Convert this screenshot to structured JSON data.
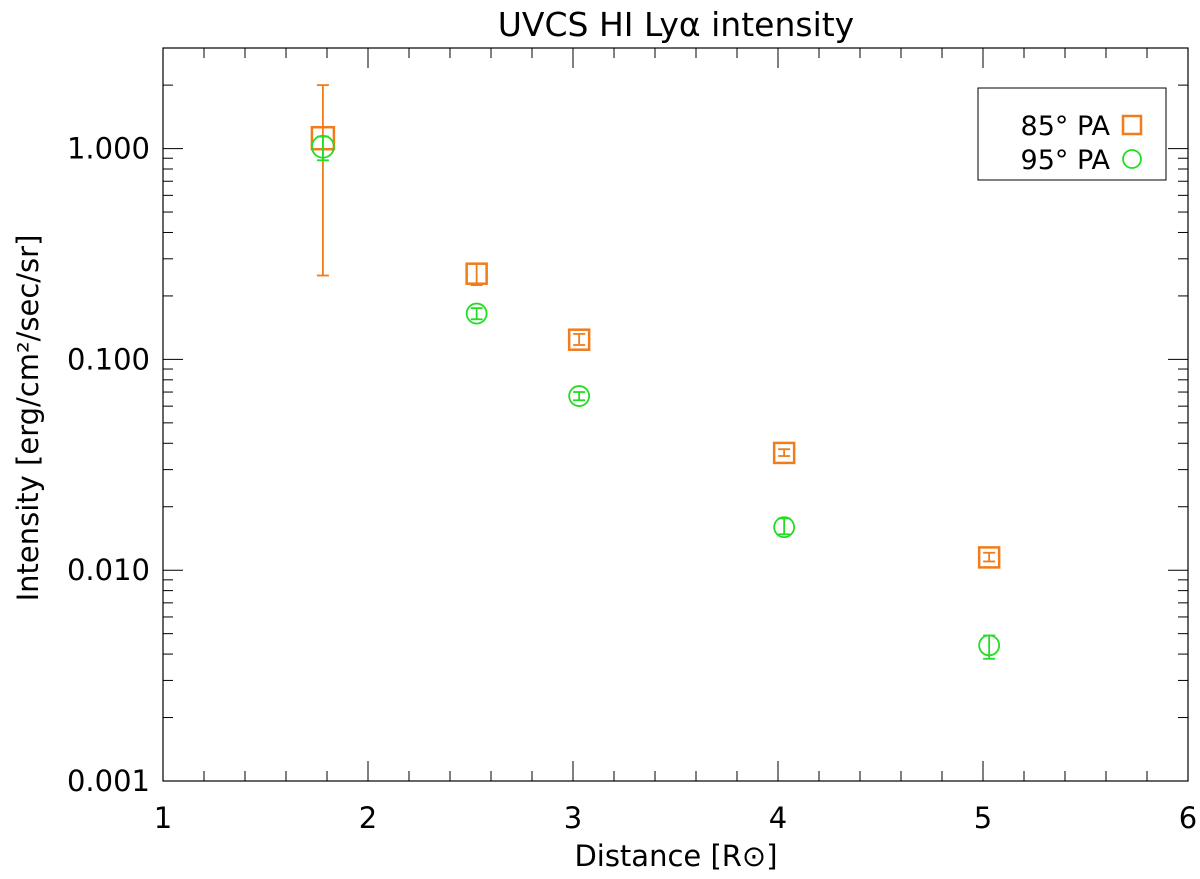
{
  "chart_data": {
    "type": "scatter",
    "title": "UVCS HI Lyα intensity",
    "xlabel": "Distance [R⊙]",
    "ylabel": "Intensity [erg/cm²/sec/sr]",
    "xlim": [
      1,
      6
    ],
    "ylim": [
      0.001,
      3
    ],
    "yscale": "log",
    "xticks": [
      1,
      2,
      3,
      4,
      5,
      6
    ],
    "xtick_labels": [
      "1",
      "2",
      "3",
      "4",
      "5",
      "6"
    ],
    "yticks": [
      0.001,
      0.01,
      0.1,
      1.0
    ],
    "ytick_labels": [
      "0.001",
      "0.010",
      "0.100",
      "1.000"
    ],
    "grid": false,
    "legend_position": "top-right",
    "series": [
      {
        "name": "85° PA",
        "marker": "square",
        "color": "#f07c1a",
        "x": [
          1.78,
          2.53,
          3.03,
          4.03,
          5.03
        ],
        "y": [
          1.12,
          0.255,
          0.124,
          0.036,
          0.0115
        ],
        "y_low": [
          0.25,
          0.225,
          0.117,
          0.0348,
          0.011
        ],
        "y_high": [
          2.0,
          0.285,
          0.132,
          0.0375,
          0.0121
        ]
      },
      {
        "name": "95° PA",
        "marker": "circle",
        "color": "#22dd22",
        "x": [
          1.78,
          2.53,
          3.03,
          4.03,
          5.03
        ],
        "y": [
          1.02,
          0.165,
          0.067,
          0.016,
          0.0044
        ],
        "y_low": [
          0.88,
          0.155,
          0.064,
          0.0148,
          0.0038
        ],
        "y_high": [
          1.14,
          0.175,
          0.07,
          0.0176,
          0.0049
        ]
      }
    ]
  }
}
